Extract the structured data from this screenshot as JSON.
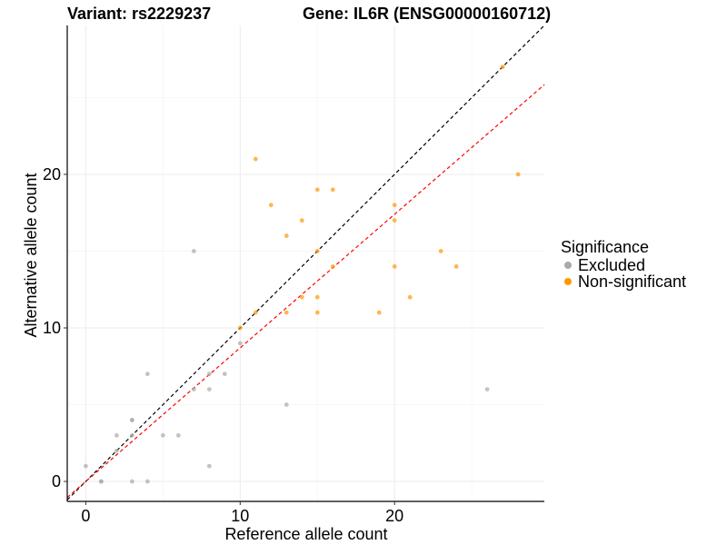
{
  "chart_data": {
    "type": "scatter",
    "title_left": "Variant: rs2229237",
    "title_right": "Gene: IL6R (ENSG00000160712)",
    "xlabel": "Reference allele count",
    "ylabel": "Alternative allele count",
    "xlim": [
      -1.2,
      29.7
    ],
    "ylim": [
      -1.3,
      29.7
    ],
    "x_ticks": [
      0,
      10,
      20
    ],
    "y_ticks": [
      0,
      10,
      20
    ],
    "legend": {
      "title": "Significance",
      "entries": [
        {
          "name": "Excluded",
          "color": "#aaaaaa"
        },
        {
          "name": "Non-significant",
          "color": "#ff9900"
        }
      ]
    },
    "reference_lines": [
      {
        "slope": 1.0,
        "intercept": 0,
        "color": "#000000",
        "dash": true
      },
      {
        "slope": 0.87,
        "intercept": 0,
        "color": "#ff0000",
        "dash": true
      }
    ],
    "series": [
      {
        "name": "Excluded",
        "color": "#aaaaaa",
        "points": [
          [
            0,
            1
          ],
          [
            1,
            0
          ],
          [
            1,
            0
          ],
          [
            2,
            2
          ],
          [
            2,
            3
          ],
          [
            3,
            3
          ],
          [
            3,
            4
          ],
          [
            3,
            4
          ],
          [
            3,
            0
          ],
          [
            4,
            0
          ],
          [
            4,
            7
          ],
          [
            5,
            3
          ],
          [
            6,
            3
          ],
          [
            7,
            15
          ],
          [
            7,
            6
          ],
          [
            8,
            7
          ],
          [
            8,
            6
          ],
          [
            8,
            1
          ],
          [
            9,
            7
          ],
          [
            10,
            9
          ],
          [
            13,
            5
          ],
          [
            26,
            6
          ]
        ]
      },
      {
        "name": "Non-significant",
        "color": "#ff9900",
        "points": [
          [
            10,
            10
          ],
          [
            11,
            11
          ],
          [
            11,
            21
          ],
          [
            12,
            18
          ],
          [
            13,
            16
          ],
          [
            13,
            11
          ],
          [
            14,
            17
          ],
          [
            14,
            12
          ],
          [
            15,
            19
          ],
          [
            15,
            15
          ],
          [
            15,
            12
          ],
          [
            15,
            11
          ],
          [
            16,
            19
          ],
          [
            16,
            14
          ],
          [
            19,
            11
          ],
          [
            20,
            18
          ],
          [
            20,
            17
          ],
          [
            20,
            14
          ],
          [
            21,
            12
          ],
          [
            23,
            15
          ],
          [
            24,
            14
          ],
          [
            27,
            27
          ],
          [
            28,
            20
          ]
        ]
      }
    ]
  }
}
